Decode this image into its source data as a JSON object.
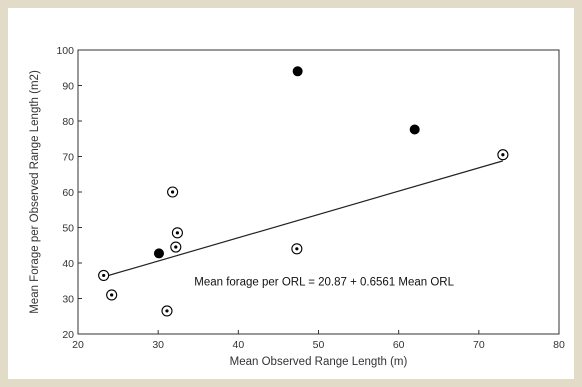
{
  "chart_data": {
    "type": "scatter",
    "title": "",
    "xlabel": "Mean Observed Range Length (m)",
    "ylabel": "Mean Forage per Observed Range Length (m2)",
    "xlim": [
      20,
      80
    ],
    "ylim": [
      20,
      100
    ],
    "xticks": [
      "20",
      "30",
      "40",
      "50",
      "60",
      "70",
      "80"
    ],
    "yticks": [
      "20",
      "30",
      "40",
      "50",
      "60",
      "70",
      "80",
      "90",
      "100"
    ],
    "grid": false,
    "series": [
      {
        "marker": "open-circle-dot",
        "color": "#000000",
        "x": [
          23.2,
          24.2,
          31.1,
          31.8,
          32.2,
          32.4,
          47.3,
          73.0
        ],
        "y": [
          36.5,
          31.0,
          26.5,
          60.0,
          44.5,
          48.5,
          44.0,
          70.5
        ]
      },
      {
        "marker": "filled-circle",
        "color": "#000000",
        "x": [
          30.1,
          47.4,
          62.0
        ],
        "y": [
          42.7,
          94.0,
          77.6
        ]
      }
    ],
    "regression": {
      "intercept": 20.87,
      "slope": 0.6561,
      "x_range": [
        23.2,
        73.0
      ],
      "label": "Mean forage per ORL =  20.87 + 0.6561 Mean ORL"
    }
  }
}
